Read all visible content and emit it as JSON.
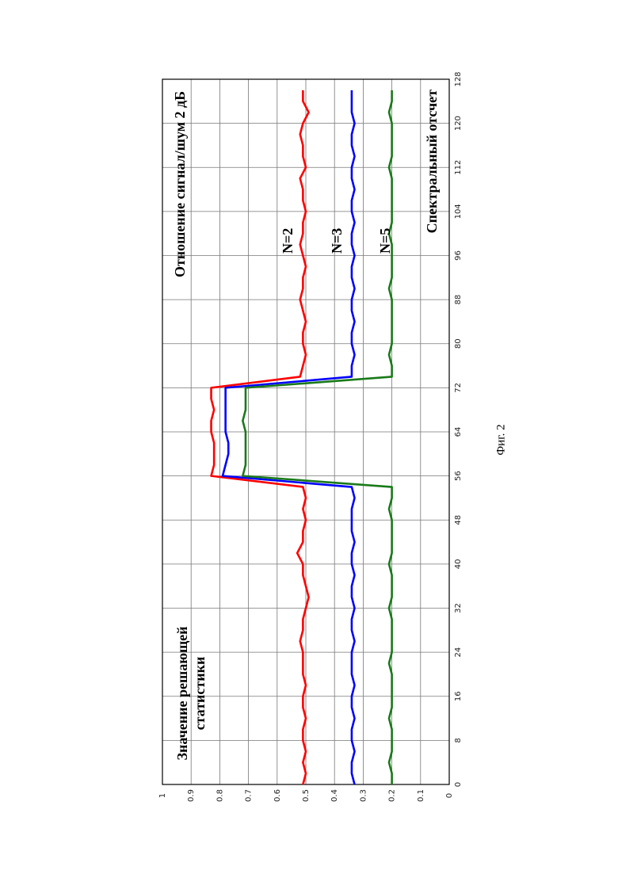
{
  "chart_data": {
    "type": "line",
    "annotation": "Отношение сигнал/шум 2 дБ",
    "xlabel": "Спектральный отсчет",
    "ylabel": [
      "Значение решающей",
      "статистики"
    ],
    "x": [
      0,
      2,
      4,
      6,
      8,
      10,
      12,
      14,
      16,
      18,
      20,
      22,
      24,
      26,
      28,
      30,
      32,
      34,
      36,
      38,
      40,
      42,
      44,
      46,
      48,
      50,
      52,
      54,
      56,
      58,
      60,
      62,
      64,
      66,
      68,
      70,
      72,
      74,
      76,
      78,
      80,
      82,
      84,
      86,
      88,
      90,
      92,
      94,
      96,
      98,
      100,
      102,
      104,
      106,
      108,
      110,
      112,
      114,
      116,
      118,
      120,
      122,
      124,
      126
    ],
    "series": [
      {
        "name": "N=2",
        "color": "#ff0000",
        "values": [
          0.51,
          0.5,
          0.51,
          0.5,
          0.51,
          0.51,
          0.5,
          0.51,
          0.51,
          0.5,
          0.51,
          0.51,
          0.51,
          0.52,
          0.51,
          0.51,
          0.5,
          0.49,
          0.5,
          0.51,
          0.51,
          0.53,
          0.51,
          0.51,
          0.5,
          0.51,
          0.5,
          0.51,
          0.83,
          0.82,
          0.82,
          0.82,
          0.83,
          0.83,
          0.82,
          0.83,
          0.83,
          0.52,
          0.51,
          0.5,
          0.51,
          0.51,
          0.5,
          0.51,
          0.52,
          0.51,
          0.51,
          0.5,
          0.51,
          0.52,
          0.51,
          0.51,
          0.5,
          0.51,
          0.51,
          0.52,
          0.5,
          0.51,
          0.51,
          0.52,
          0.51,
          0.49,
          0.51,
          0.51
        ]
      },
      {
        "name": "N=3",
        "color": "#0000ff",
        "values": [
          0.33,
          0.34,
          0.34,
          0.33,
          0.34,
          0.34,
          0.33,
          0.34,
          0.34,
          0.33,
          0.34,
          0.34,
          0.34,
          0.33,
          0.34,
          0.34,
          0.33,
          0.34,
          0.34,
          0.33,
          0.34,
          0.34,
          0.33,
          0.34,
          0.34,
          0.34,
          0.33,
          0.34,
          0.79,
          0.78,
          0.77,
          0.77,
          0.78,
          0.78,
          0.78,
          0.78,
          0.78,
          0.34,
          0.34,
          0.33,
          0.34,
          0.34,
          0.33,
          0.34,
          0.34,
          0.33,
          0.34,
          0.34,
          0.33,
          0.34,
          0.34,
          0.33,
          0.34,
          0.34,
          0.33,
          0.34,
          0.34,
          0.33,
          0.34,
          0.34,
          0.33,
          0.34,
          0.34,
          0.34
        ]
      },
      {
        "name": "N=5",
        "color": "#1a7a1a",
        "values": [
          0.2,
          0.2,
          0.21,
          0.2,
          0.2,
          0.2,
          0.21,
          0.2,
          0.2,
          0.2,
          0.2,
          0.21,
          0.2,
          0.2,
          0.2,
          0.2,
          0.21,
          0.2,
          0.2,
          0.2,
          0.21,
          0.2,
          0.2,
          0.2,
          0.2,
          0.21,
          0.2,
          0.2,
          0.72,
          0.71,
          0.71,
          0.71,
          0.71,
          0.72,
          0.71,
          0.71,
          0.71,
          0.2,
          0.2,
          0.21,
          0.2,
          0.2,
          0.2,
          0.2,
          0.2,
          0.21,
          0.2,
          0.2,
          0.2,
          0.2,
          0.21,
          0.2,
          0.2,
          0.2,
          0.2,
          0.2,
          0.21,
          0.2,
          0.2,
          0.2,
          0.2,
          0.21,
          0.2,
          0.2
        ]
      }
    ],
    "xlim": [
      0,
      128
    ],
    "ylim": [
      0,
      1
    ],
    "xticks": [
      0,
      8,
      16,
      24,
      32,
      40,
      48,
      56,
      64,
      72,
      80,
      88,
      96,
      104,
      112,
      120,
      128
    ],
    "yticks": [
      0,
      0.1,
      0.2,
      0.3,
      0.4,
      0.5,
      0.6,
      0.7,
      0.8,
      0.9,
      1
    ],
    "grid": true
  },
  "caption": "Фиг. 2"
}
